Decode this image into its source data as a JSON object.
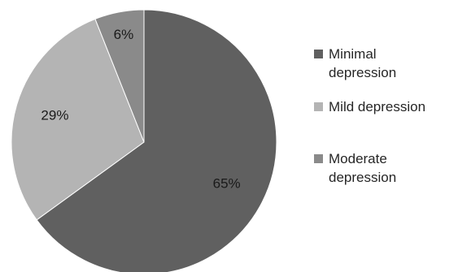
{
  "chart_data": {
    "type": "pie",
    "categories": [
      "Minimal depression",
      "Mild depression",
      "Moderate depression"
    ],
    "values": [
      65,
      29,
      6
    ],
    "labels": [
      "65%",
      "29%",
      "6%"
    ],
    "legend": [
      {
        "lines": [
          "Minimal",
          "depression"
        ]
      },
      {
        "lines": [
          "Mild depression"
        ]
      },
      {
        "lines": [
          "Moderate",
          "depression"
        ]
      }
    ],
    "colors": [
      "#606060",
      "#b4b4b4",
      "#8a8a8a"
    ],
    "legend_position": "right",
    "start": "top",
    "direction": "clockwise"
  }
}
